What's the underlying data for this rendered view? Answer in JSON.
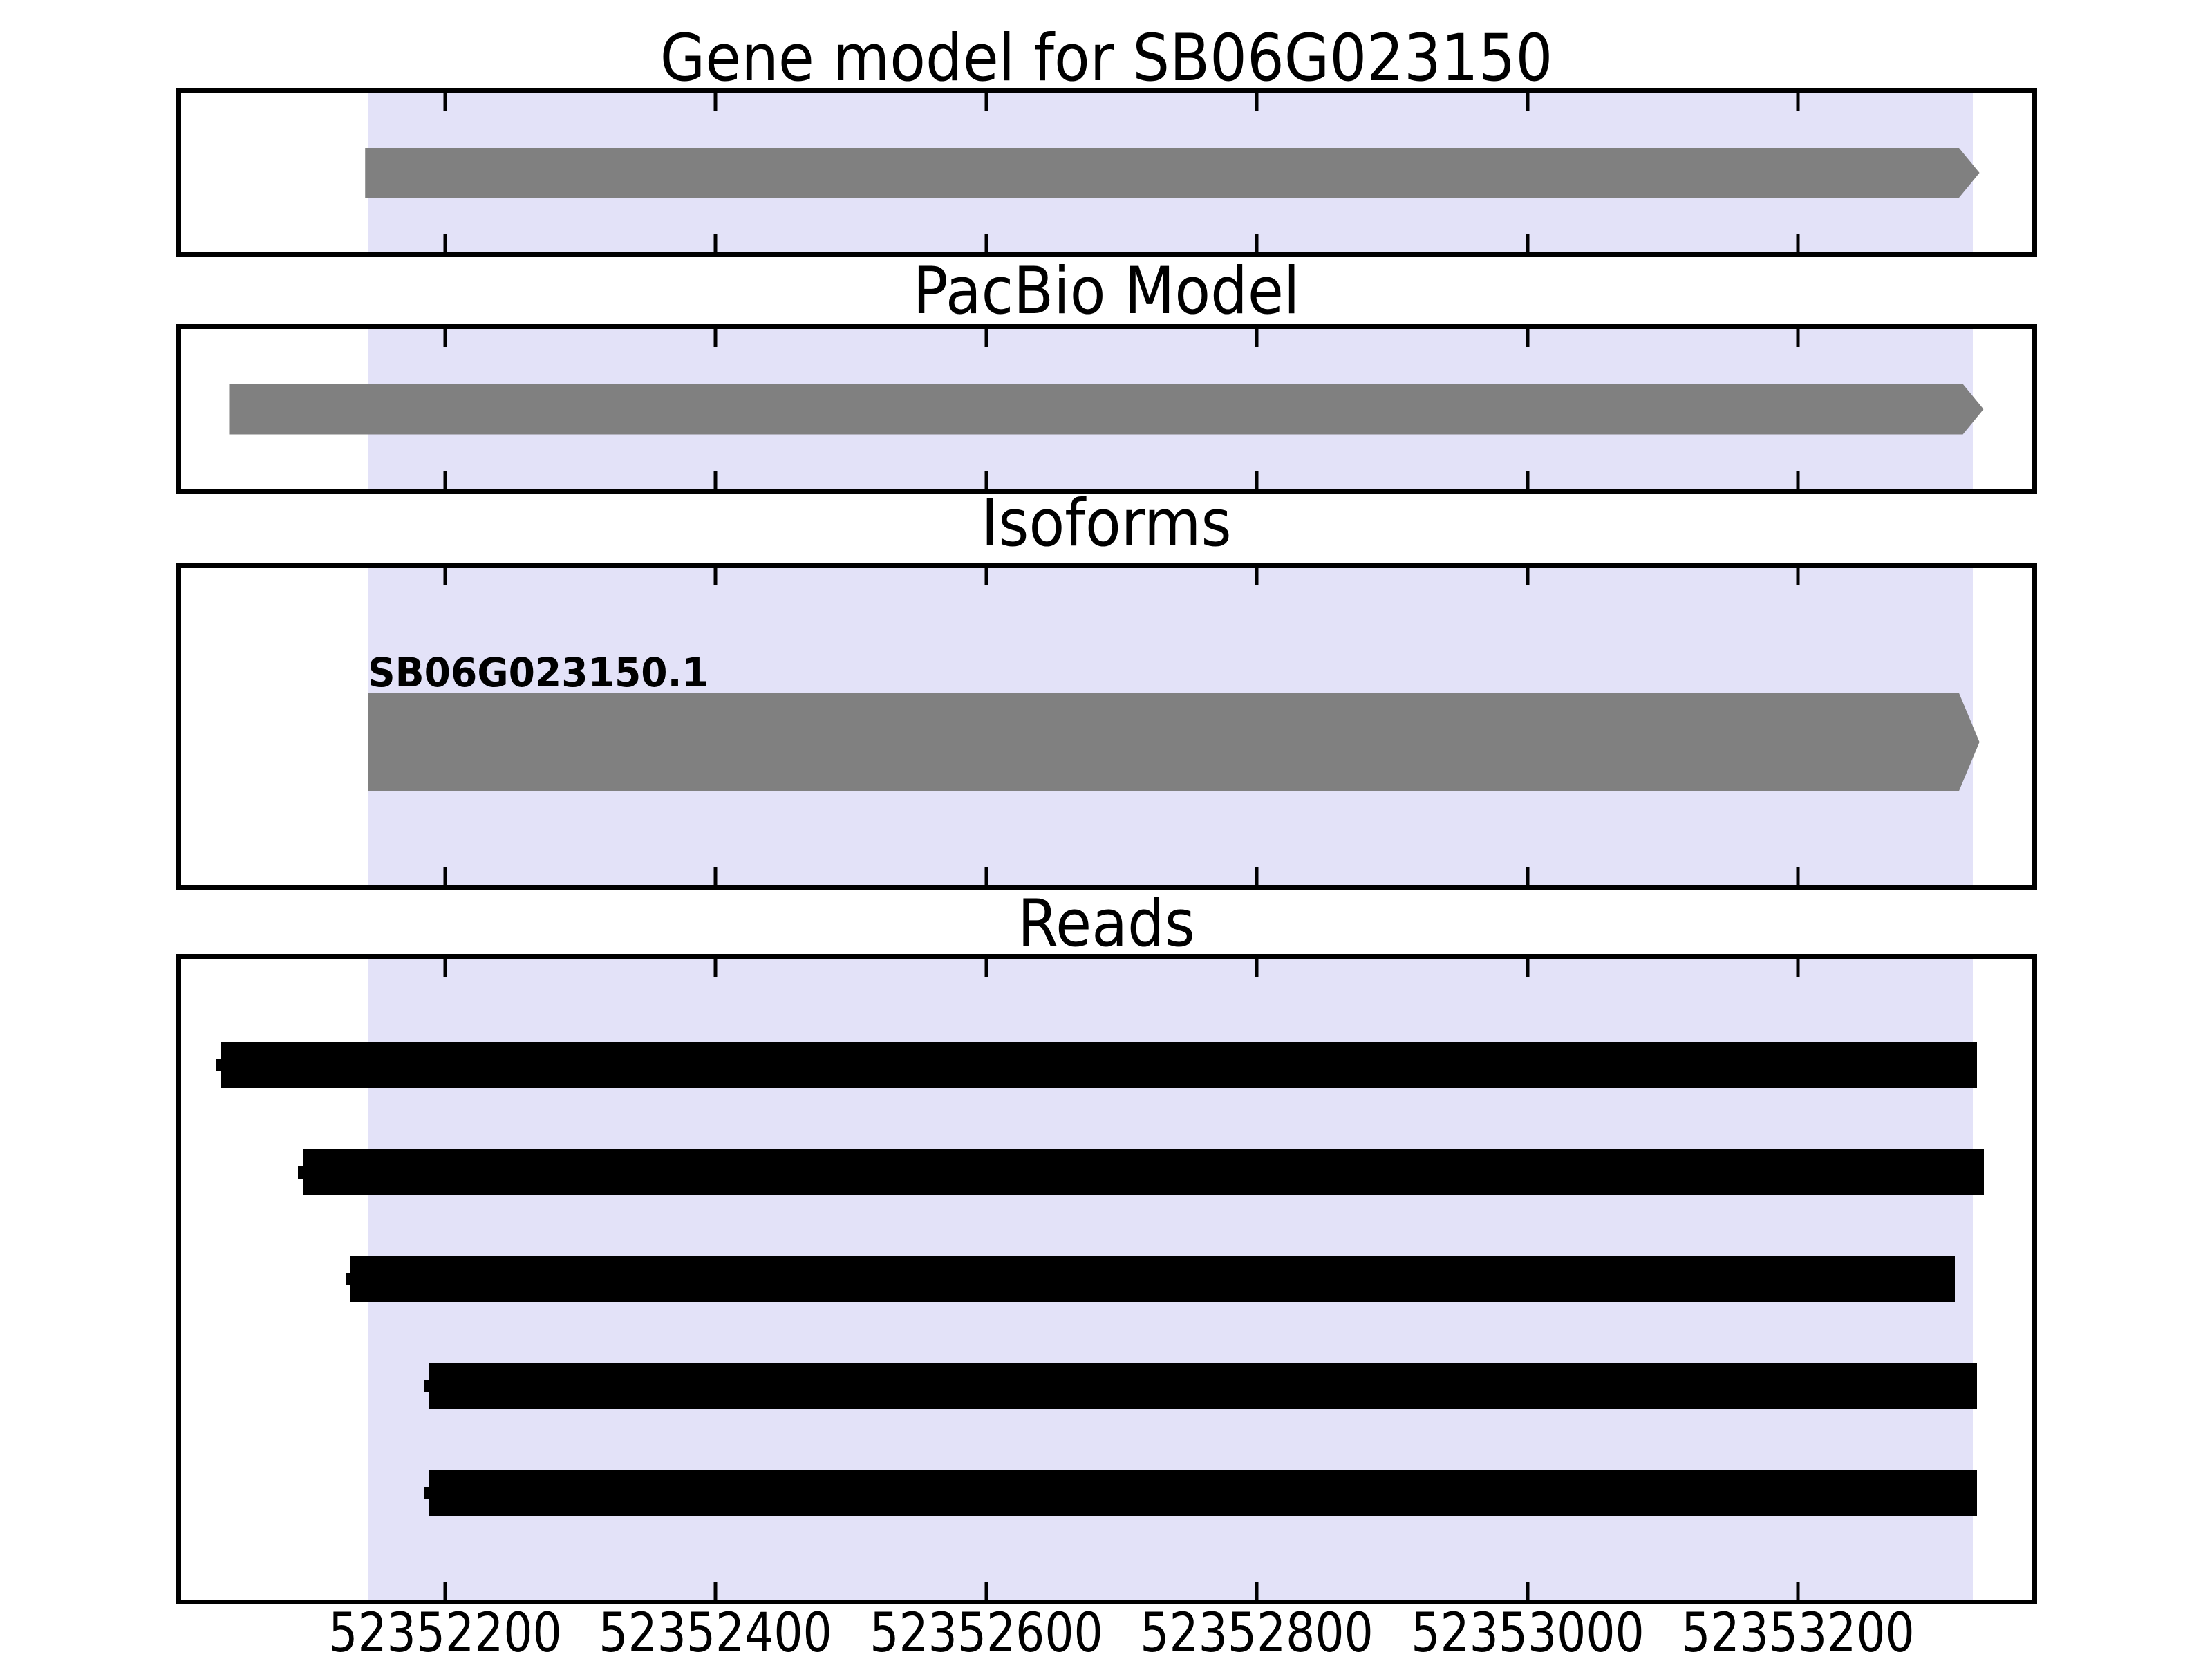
{
  "figure": {
    "background": "#ffffff",
    "border_color": "#000000"
  },
  "chart_data": {
    "type": "genome-tracks",
    "x_axis": {
      "min": 52352005,
      "max": 52353373,
      "tick_values": [
        52352200,
        52352400,
        52352600,
        52352800,
        52353000,
        52353200
      ],
      "tick_labels": [
        "52352200",
        "52352400",
        "52352600",
        "52352800",
        "52353000",
        "52353200"
      ],
      "tick_color": "#000000"
    },
    "highlight_region": {
      "start": 52352143,
      "end": 52353329,
      "color": "#e3e2f8"
    },
    "tracks": [
      {
        "id": "gene-model",
        "title": "Gene model for SB06G023150",
        "features": [
          {
            "shape": "arrow-right",
            "start": 52352141,
            "end": 52353334,
            "color": "#808080",
            "height_frac": 0.317,
            "center_frac": 0.5
          }
        ]
      },
      {
        "id": "pacbio-model",
        "title": "PacBio Model",
        "features": [
          {
            "shape": "arrow-right",
            "start": 52352041,
            "end": 52353337,
            "color": "#808080",
            "height_frac": 0.315,
            "center_frac": 0.5
          }
        ]
      },
      {
        "id": "isoforms",
        "title": "Isoforms",
        "features": [
          {
            "shape": "arrow-right",
            "start": 52352143,
            "end": 52353334,
            "color": "#808080",
            "height_frac": 0.312,
            "center_frac": 0.55,
            "label": "SB06G023150.1"
          }
        ]
      },
      {
        "id": "reads",
        "title": "Reads",
        "features": [
          {
            "shape": "rect",
            "start": 52352034,
            "end": 52353332,
            "color": "#000000",
            "height_frac": 0.072,
            "center_frac": 0.166,
            "start_marker": true
          },
          {
            "shape": "rect",
            "start": 52352095,
            "end": 52353337,
            "color": "#000000",
            "height_frac": 0.072,
            "center_frac": 0.333,
            "start_marker": true
          },
          {
            "shape": "rect",
            "start": 52352130,
            "end": 52353316,
            "color": "#000000",
            "height_frac": 0.072,
            "center_frac": 0.5,
            "start_marker": true
          },
          {
            "shape": "rect",
            "start": 52352188,
            "end": 52353332,
            "color": "#000000",
            "height_frac": 0.072,
            "center_frac": 0.667,
            "start_marker": true
          },
          {
            "shape": "rect",
            "start": 52352188,
            "end": 52353332,
            "color": "#000000",
            "height_frac": 0.072,
            "center_frac": 0.834,
            "start_marker": true
          }
        ]
      }
    ]
  }
}
